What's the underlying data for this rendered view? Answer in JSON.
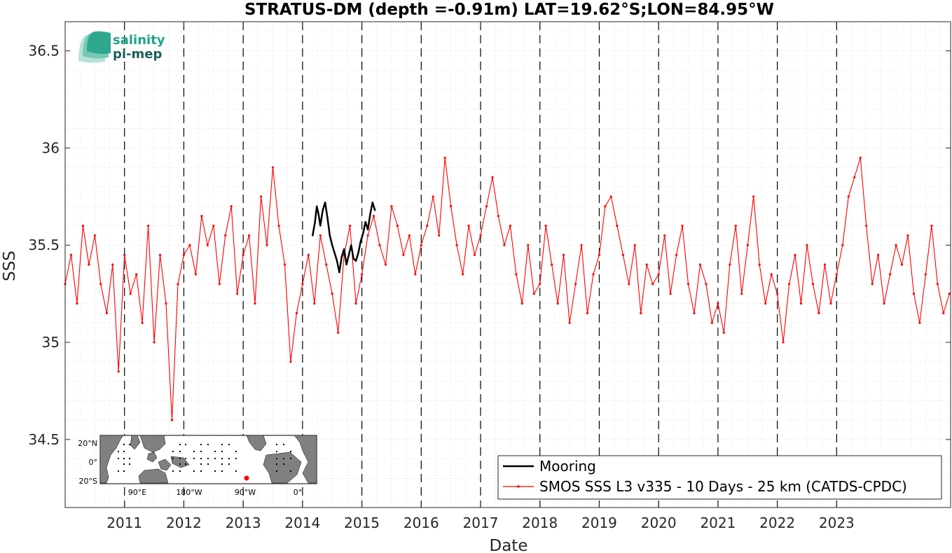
{
  "logo": {
    "line1": "salinity",
    "line2": "pi-mep"
  },
  "inset_map": {
    "lat_labels": [
      "20°N",
      "0°",
      "20°S"
    ],
    "lon_labels": [
      "90°E",
      "180°W",
      "90°W",
      "0°"
    ]
  },
  "chart_data": {
    "type": "line",
    "title": "STRATUS-DM (depth =-0.91m) LAT=19.62°S;LON=84.95°W",
    "xlabel": "Date",
    "ylabel": "SSS",
    "xlim": [
      2010.0,
      2024.92
    ],
    "ylim": [
      34.15,
      36.65
    ],
    "yticks": [
      34.5,
      35,
      35.5,
      36,
      36.5
    ],
    "ytick_labels": [
      "34.5",
      "35",
      "35.5",
      "36",
      "36.5"
    ],
    "xticks": [
      2011,
      2012,
      2013,
      2014,
      2015,
      2016,
      2017,
      2018,
      2019,
      2020,
      2021,
      2022,
      2023
    ],
    "xtick_labels": [
      "2011",
      "2012",
      "2013",
      "2014",
      "2015",
      "2016",
      "2017",
      "2018",
      "2019",
      "2020",
      "2021",
      "2022",
      "2023"
    ],
    "year_dividers": [
      2011,
      2012,
      2013,
      2014,
      2015,
      2016,
      2017,
      2018,
      2019,
      2020,
      2021,
      2022,
      2023
    ],
    "grid": true,
    "legend_position": "bottom-right",
    "series": [
      {
        "name": "Mooring",
        "color": "#000000",
        "x": [
          2014.17,
          2014.21,
          2014.24,
          2014.27,
          2014.3,
          2014.34,
          2014.38,
          2014.42,
          2014.46,
          2014.5,
          2014.54,
          2014.58,
          2014.62,
          2014.66,
          2014.7,
          2014.74,
          2014.78,
          2014.82,
          2014.86,
          2014.9,
          2014.94,
          2014.98,
          2015.02,
          2015.06,
          2015.1,
          2015.14,
          2015.18,
          2015.22
        ],
        "y": [
          35.55,
          35.62,
          35.7,
          35.66,
          35.6,
          35.68,
          35.72,
          35.64,
          35.55,
          35.5,
          35.46,
          35.42,
          35.36,
          35.44,
          35.48,
          35.4,
          35.45,
          35.5,
          35.43,
          35.42,
          35.46,
          35.52,
          35.56,
          35.62,
          35.58,
          35.66,
          35.72,
          35.68
        ]
      },
      {
        "name": "SMOS SSS L3 v335 - 10 Days - 25 km (CATDS-CPDC)",
        "color": "#ff0000",
        "x": [
          2010.0,
          2010.1,
          2010.2,
          2010.3,
          2010.4,
          2010.5,
          2010.6,
          2010.7,
          2010.8,
          2010.9,
          2011.0,
          2011.1,
          2011.2,
          2011.3,
          2011.4,
          2011.5,
          2011.6,
          2011.7,
          2011.8,
          2011.9,
          2012.0,
          2012.1,
          2012.2,
          2012.3,
          2012.4,
          2012.5,
          2012.6,
          2012.7,
          2012.8,
          2012.9,
          2013.0,
          2013.1,
          2013.2,
          2013.3,
          2013.4,
          2013.5,
          2013.6,
          2013.7,
          2013.8,
          2013.9,
          2014.0,
          2014.1,
          2014.2,
          2014.3,
          2014.4,
          2014.5,
          2014.6,
          2014.7,
          2014.8,
          2014.9,
          2015.0,
          2015.1,
          2015.2,
          2015.3,
          2015.4,
          2015.5,
          2015.6,
          2015.7,
          2015.8,
          2015.9,
          2016.0,
          2016.1,
          2016.2,
          2016.3,
          2016.4,
          2016.5,
          2016.6,
          2016.7,
          2016.8,
          2016.9,
          2017.0,
          2017.1,
          2017.2,
          2017.3,
          2017.4,
          2017.5,
          2017.6,
          2017.7,
          2017.8,
          2017.9,
          2018.0,
          2018.1,
          2018.2,
          2018.3,
          2018.4,
          2018.5,
          2018.6,
          2018.7,
          2018.8,
          2018.9,
          2019.0,
          2019.1,
          2019.2,
          2019.3,
          2019.4,
          2019.5,
          2019.6,
          2019.7,
          2019.8,
          2019.9,
          2020.0,
          2020.1,
          2020.2,
          2020.3,
          2020.4,
          2020.5,
          2020.6,
          2020.7,
          2020.8,
          2020.9,
          2021.0,
          2021.1,
          2021.2,
          2021.3,
          2021.4,
          2021.5,
          2021.6,
          2021.7,
          2021.8,
          2021.9,
          2022.0,
          2022.1,
          2022.2,
          2022.3,
          2022.4,
          2022.5,
          2022.6,
          2022.7,
          2022.8,
          2022.9,
          2023.0,
          2023.1,
          2023.2,
          2023.3,
          2023.4,
          2023.5,
          2023.6,
          2023.7,
          2023.8,
          2023.9,
          2024.0,
          2024.1,
          2024.2,
          2024.3,
          2024.4,
          2024.5,
          2024.6,
          2024.7,
          2024.8,
          2024.9
        ],
        "y": [
          35.3,
          35.45,
          35.2,
          35.6,
          35.4,
          35.55,
          35.3,
          35.15,
          35.4,
          34.85,
          35.45,
          35.25,
          35.35,
          35.1,
          35.6,
          35.0,
          35.45,
          35.2,
          34.6,
          35.3,
          35.45,
          35.5,
          35.35,
          35.65,
          35.5,
          35.6,
          35.3,
          35.55,
          35.7,
          35.25,
          35.45,
          35.55,
          35.2,
          35.75,
          35.5,
          35.9,
          35.6,
          35.4,
          34.9,
          35.15,
          35.3,
          35.45,
          35.2,
          35.55,
          35.4,
          35.25,
          35.05,
          35.45,
          35.6,
          35.2,
          35.35,
          35.55,
          35.65,
          35.5,
          35.4,
          35.7,
          35.6,
          35.45,
          35.55,
          35.35,
          35.5,
          35.6,
          35.75,
          35.55,
          35.95,
          35.7,
          35.5,
          35.35,
          35.6,
          35.45,
          35.55,
          35.7,
          35.85,
          35.65,
          35.5,
          35.6,
          35.35,
          35.2,
          35.5,
          35.25,
          35.3,
          35.6,
          35.4,
          35.2,
          35.45,
          35.1,
          35.3,
          35.5,
          35.15,
          35.35,
          35.45,
          35.7,
          35.75,
          35.6,
          35.45,
          35.3,
          35.5,
          35.15,
          35.4,
          35.3,
          35.35,
          35.55,
          35.25,
          35.45,
          35.6,
          35.3,
          35.15,
          35.4,
          35.3,
          35.1,
          35.2,
          35.05,
          35.4,
          35.6,
          35.25,
          35.5,
          35.75,
          35.4,
          35.2,
          35.35,
          35.25,
          35.0,
          35.3,
          35.45,
          35.2,
          35.5,
          35.3,
          35.15,
          35.4,
          35.2,
          35.35,
          35.5,
          35.75,
          35.85,
          35.95,
          35.6,
          35.3,
          35.45,
          35.2,
          35.35,
          35.5,
          35.4,
          35.55,
          35.25,
          35.1,
          35.35,
          35.6,
          35.3,
          35.15,
          35.25
        ]
      }
    ]
  }
}
